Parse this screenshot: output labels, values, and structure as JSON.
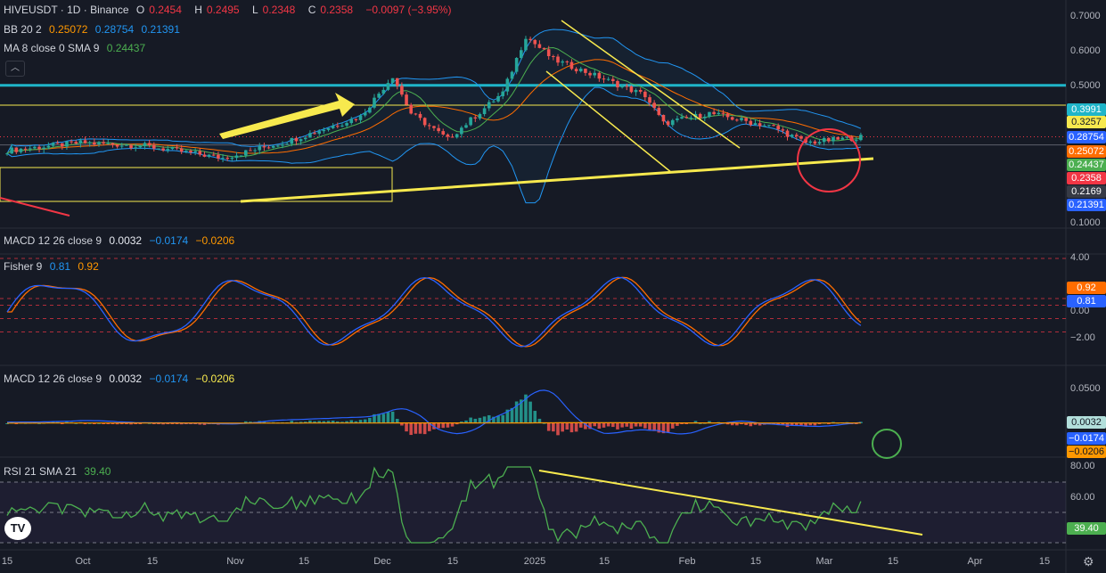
{
  "header": {
    "symbol": "HIVEUSDT · 1D · Binance",
    "open_label": "O",
    "open": "0.2454",
    "high_label": "H",
    "high": "0.2495",
    "low_label": "L",
    "low": "0.2348",
    "close_label": "C",
    "close": "0.2358",
    "change": "−0.0097 (−3.95%)"
  },
  "legends": {
    "bb": {
      "name": "BB 20 2",
      "v1": "0.25072",
      "v2": "0.28754",
      "v3": "0.21391"
    },
    "ma": {
      "name": "MA 8 close 0 SMA 9",
      "v1": "0.24437"
    },
    "macd_top": {
      "name": "MACD 12 26 close 9",
      "v1": "0.0032",
      "v2": "−0.0174",
      "v3": "−0.0206"
    },
    "fisher": {
      "name": "Fisher 9",
      "v1": "0.81",
      "v2": "0.92"
    },
    "macd": {
      "name": "MACD 12 26 close 9",
      "v1": "0.0032",
      "v2": "−0.0174",
      "v3": "−0.0206"
    },
    "rsi": {
      "name": "RSI 21 SMA 21",
      "v1": "39.40"
    }
  },
  "collapse_icon": "chevron-up-icon",
  "price_axis_ticks": [
    "0.7000",
    "0.6000",
    "0.5000",
    "0.1000"
  ],
  "price_tags": [
    {
      "label": "0.3991",
      "color": "#1fb5c9"
    },
    {
      "label": "0.3257",
      "color": "#f7e94e"
    },
    {
      "label": "0.28754",
      "color": "#2962ff"
    },
    {
      "label": "0.25072",
      "color": "#ff6d00"
    },
    {
      "label": "0.24437",
      "color": "#4caf50"
    },
    {
      "label": "0.2358",
      "color": "#f23645"
    },
    {
      "label": "0.2169",
      "color": "#363a45"
    },
    {
      "label": "0.21391",
      "color": "#2962ff"
    }
  ],
  "fisher_axis_ticks": [
    "4.00",
    "0.00",
    "−2.00"
  ],
  "fisher_tags": [
    {
      "label": "0.92",
      "color": "#ff6d00"
    },
    {
      "label": "0.81",
      "color": "#2962ff"
    }
  ],
  "macd_axis_ticks": [
    "0.0500"
  ],
  "macd_tags": [
    {
      "label": "0.0032",
      "color": "#b2dfdb",
      "text": "#131722"
    },
    {
      "label": "−0.0174",
      "color": "#2962ff",
      "text": "#ffffff"
    },
    {
      "label": "−0.0206",
      "color": "#ff9800",
      "text": "#131722"
    }
  ],
  "rsi_axis_ticks": [
    "80.00",
    "60.00"
  ],
  "rsi_tags": [
    {
      "label": "39.40",
      "color": "#4caf50"
    }
  ],
  "time_axis": [
    "15",
    "Oct",
    "15",
    "Nov",
    "15",
    "Dec",
    "15",
    "2025",
    "15",
    "Feb",
    "15",
    "Mar",
    "15",
    "Apr",
    "15"
  ],
  "logo_text": "TV",
  "settings_icon": "gear-icon",
  "chart_data": {
    "type": "candlestick",
    "symbol": "HIVEUSDT",
    "interval": "1D",
    "exchange": "Binance",
    "x_range": [
      "Sep 15",
      "Apr 15"
    ],
    "price_scale": "log",
    "price_key_points": [
      {
        "date": "Sep 15",
        "close": 0.205
      },
      {
        "date": "Oct 1",
        "close": 0.222
      },
      {
        "date": "Oct 15",
        "close": 0.215
      },
      {
        "date": "Nov 1",
        "close": 0.19
      },
      {
        "date": "Nov 15",
        "close": 0.225
      },
      {
        "date": "Dec 1",
        "close": 0.29
      },
      {
        "date": "Dec 8",
        "close": 0.44
      },
      {
        "date": "Dec 12",
        "close": 0.3
      },
      {
        "date": "Dec 20",
        "close": 0.23
      },
      {
        "date": "Jan 1",
        "close": 0.37
      },
      {
        "date": "Jan 6",
        "close": 0.66
      },
      {
        "date": "Jan 12",
        "close": 0.52
      },
      {
        "date": "Jan 20",
        "close": 0.45
      },
      {
        "date": "Feb 1",
        "close": 0.36
      },
      {
        "date": "Feb 5",
        "close": 0.27
      },
      {
        "date": "Feb 15",
        "close": 0.3
      },
      {
        "date": "Mar 1",
        "close": 0.26
      },
      {
        "date": "Mar 8",
        "close": 0.222
      },
      {
        "date": "Mar 20",
        "close": 0.235
      }
    ],
    "horizontal_levels": [
      0.3991,
      0.3257,
      0.2169
    ],
    "annotations": [
      "up-arrow",
      "ascending-trendline",
      "descending-channel",
      "circle-highlight"
    ]
  }
}
